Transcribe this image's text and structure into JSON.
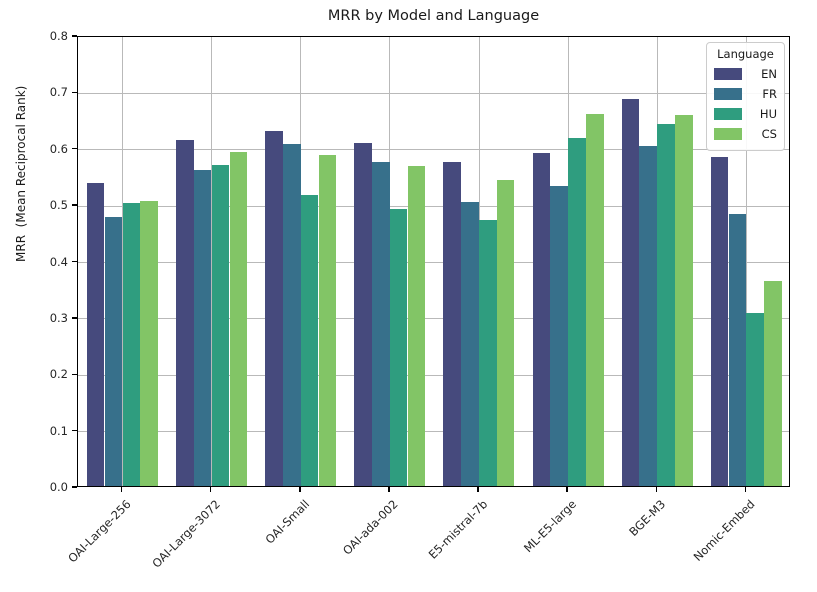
{
  "chart_data": {
    "type": "bar",
    "title": "MRR by Model and Language",
    "xlabel": "",
    "ylabel": "MRR  (Mean Reciprocal Rank)",
    "categories": [
      "OAI-Large-256",
      "OAI-Large-3072",
      "OAI-Small",
      "OAI-ada-002",
      "E5-mistral-7b",
      "ML-E5-large",
      "BGE-M3",
      "Nomic-Embed"
    ],
    "series": [
      {
        "name": "EN",
        "color": "#464a7d",
        "values": [
          0.538,
          0.613,
          0.63,
          0.608,
          0.574,
          0.591,
          0.686,
          0.584
        ]
      },
      {
        "name": "FR",
        "color": "#37708b",
        "values": [
          0.477,
          0.561,
          0.606,
          0.574,
          0.503,
          0.532,
          0.603,
          0.483
        ]
      },
      {
        "name": "HU",
        "color": "#2f9d7f",
        "values": [
          0.502,
          0.57,
          0.516,
          0.491,
          0.472,
          0.617,
          0.642,
          0.307
        ]
      },
      {
        "name": "CS",
        "color": "#82c566",
        "values": [
          0.506,
          0.593,
          0.588,
          0.567,
          0.543,
          0.66,
          0.659,
          0.364
        ]
      }
    ],
    "ylim": [
      0.0,
      0.8
    ],
    "yticks": [
      0.0,
      0.1,
      0.2,
      0.3,
      0.4,
      0.5,
      0.6,
      0.7,
      0.8
    ],
    "grid": true,
    "grid_color": "#b9b9b9",
    "legend_title": "Language",
    "legend_position": "upper right",
    "group_width_fraction": 0.8
  }
}
